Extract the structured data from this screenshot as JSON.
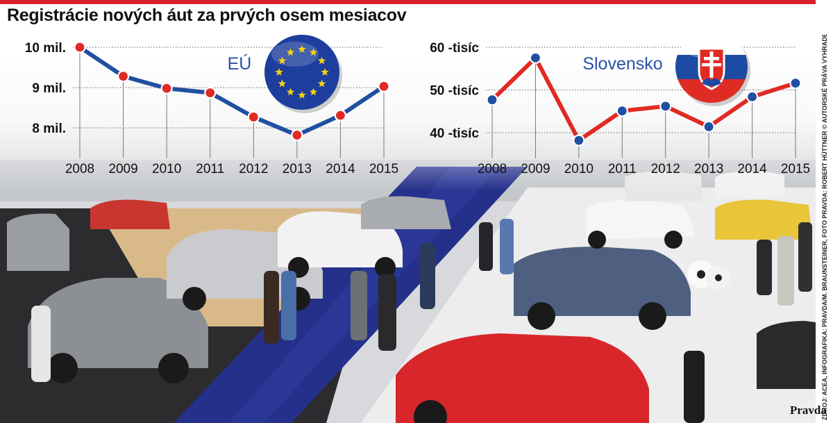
{
  "title": "Registrácie nových áut za prvých osem mesiacov",
  "chart_data": [
    {
      "type": "line",
      "title": "EÚ",
      "x": [
        "2008",
        "2009",
        "2010",
        "2011",
        "2012",
        "2013",
        "2014",
        "2015"
      ],
      "y_tick_labels": [
        "10 mil.",
        "9 mil.",
        "8 mil."
      ],
      "y_ticks": [
        10,
        9,
        8
      ],
      "ylim": [
        7.52,
        10.0
      ],
      "series": [
        {
          "values": [
            10.0,
            9.28,
            8.98,
            8.87,
            8.27,
            7.82,
            8.31,
            9.03
          ]
        }
      ],
      "line_color": "#1f4fa0",
      "marker_color": "#e02a24",
      "grid": true,
      "emblem": "eu-flag-icon"
    },
    {
      "type": "line",
      "title": "Slovensko",
      "x": [
        "2008",
        "2009",
        "2010",
        "2011",
        "2012",
        "2013",
        "2014",
        "2015"
      ],
      "y_tick_labels": [
        "60 -tisíc",
        "50 -tisíc",
        "40 -tisíc"
      ],
      "y_ticks": [
        60,
        50,
        40
      ],
      "ylim": [
        36.6,
        60.0
      ],
      "series": [
        {
          "values": [
            47.7,
            57.5,
            38.2,
            45.1,
            46.2,
            41.4,
            48.4,
            51.6
          ]
        }
      ],
      "line_color": "#e02a24",
      "marker_color": "#1f4fa0",
      "grid": true,
      "emblem": "slovakia-flag-icon"
    }
  ],
  "credit": "ZDROJ: ACEA, INFOGRAFIKA: PRAVDA/M. BRAUNSTEINER, FOTO PRAVDA: ROBERT HÜTTNER © AUTORSKÉ PRÁVA VYHRADENÉ",
  "brand": "Pravda"
}
